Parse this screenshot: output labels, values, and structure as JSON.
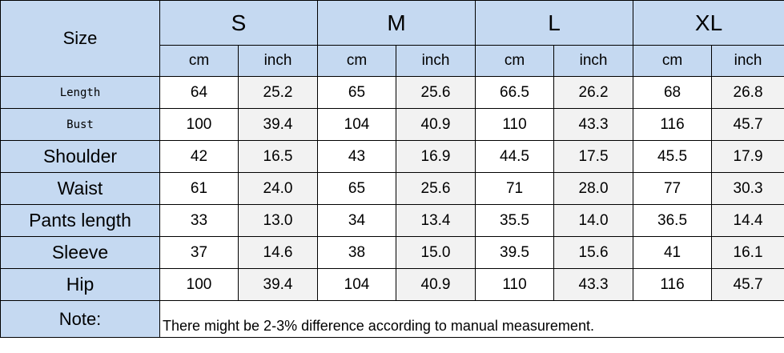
{
  "header": {
    "size_label": "Size",
    "sizes": [
      "S",
      "M",
      "L",
      "XL"
    ],
    "units": [
      "cm",
      "inch",
      "cm",
      "inch",
      "cm",
      "inch",
      "cm",
      "inch"
    ]
  },
  "rows": [
    {
      "label": "Length",
      "values": [
        "64",
        "25.2",
        "65",
        "25.6",
        "66.5",
        "26.2",
        "68",
        "26.8"
      ]
    },
    {
      "label": "Bust",
      "values": [
        "100",
        "39.4",
        "104",
        "40.9",
        "110",
        "43.3",
        "116",
        "45.7"
      ]
    },
    {
      "label": "Shoulder",
      "values": [
        "42",
        "16.5",
        "43",
        "16.9",
        "44.5",
        "17.5",
        "45.5",
        "17.9"
      ]
    },
    {
      "label": "Waist",
      "values": [
        "61",
        "24.0",
        "65",
        "25.6",
        "71",
        "28.0",
        "77",
        "30.3"
      ]
    },
    {
      "label": "Pants length",
      "values": [
        "33",
        "13.0",
        "34",
        "13.4",
        "35.5",
        "14.0",
        "36.5",
        "14.4"
      ]
    },
    {
      "label": "Sleeve",
      "values": [
        "37",
        "14.6",
        "38",
        "15.0",
        "39.5",
        "15.6",
        "41",
        "16.1"
      ]
    },
    {
      "label": "Hip",
      "values": [
        "100",
        "39.4",
        "104",
        "40.9",
        "110",
        "43.3",
        "116",
        "45.7"
      ]
    }
  ],
  "note": {
    "label": "Note:",
    "text": "There might be 2-3% difference according to manual measurement."
  },
  "colors": {
    "header_blue": "#c5d9f1",
    "inch_grey": "#f2f2f2",
    "border": "#000000"
  }
}
